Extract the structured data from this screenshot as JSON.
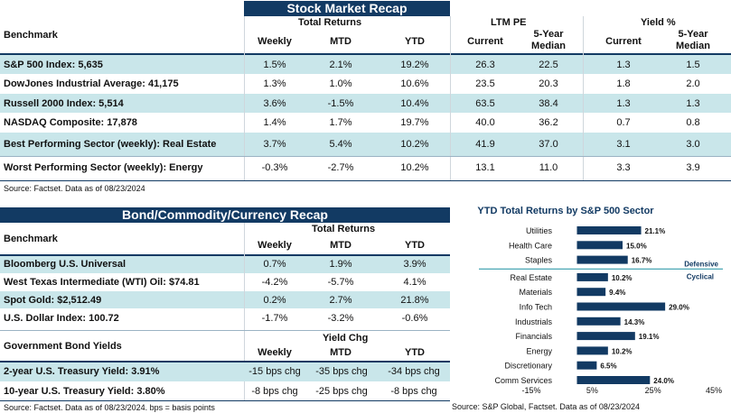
{
  "stock": {
    "title": "Stock Market Recap",
    "benchmark_label": "Benchmark",
    "group_total": "Total Returns",
    "group_pe": "LTM PE",
    "group_yield": "Yield %",
    "col_weekly": "Weekly",
    "col_mtd": "MTD",
    "col_ytd": "YTD",
    "col_current": "Current",
    "col_median_1": "5-Year",
    "col_median_2": "Median",
    "yield_current": "Current",
    "yield_median_1": "5-Year",
    "yield_median_2": "Median",
    "rows": [
      {
        "label": "S&P 500 Index: 5,635",
        "weekly": "1.5%",
        "mtd": "2.1%",
        "ytd": "19.2%",
        "pe_current": "26.3",
        "pe_median": "22.5",
        "y_current": "1.3",
        "y_median": "1.5"
      },
      {
        "label": "DowJones Industrial Average: 41,175",
        "weekly": "1.3%",
        "mtd": "1.0%",
        "ytd": "10.6%",
        "pe_current": "23.5",
        "pe_median": "20.3",
        "y_current": "1.8",
        "y_median": "2.0"
      },
      {
        "label": "Russell 2000 Index: 5,514",
        "weekly": "3.6%",
        "mtd": "-1.5%",
        "ytd": "10.4%",
        "pe_current": "63.5",
        "pe_median": "38.4",
        "y_current": "1.3",
        "y_median": "1.3"
      },
      {
        "label": "NASDAQ Composite: 17,878",
        "weekly": "1.4%",
        "mtd": "1.7%",
        "ytd": "19.7%",
        "pe_current": "40.0",
        "pe_median": "36.2",
        "y_current": "0.7",
        "y_median": "0.8"
      },
      {
        "label": "Best Performing Sector (weekly): Real Estate",
        "weekly": "3.7%",
        "mtd": "5.4%",
        "ytd": "10.2%",
        "pe_current": "41.9",
        "pe_median": "37.0",
        "y_current": "3.1",
        "y_median": "3.0"
      },
      {
        "label": "Worst Performing Sector (weekly): Energy",
        "weekly": "-0.3%",
        "mtd": "-2.7%",
        "ytd": "10.2%",
        "pe_current": "13.1",
        "pe_median": "11.0",
        "y_current": "3.3",
        "y_median": "3.9"
      }
    ],
    "source": "Source: Factset. Data as of 08/23/2024"
  },
  "bond": {
    "title": "Bond/Commodity/Currency Recap",
    "benchmark_label": "Benchmark",
    "group_total": "Total Returns",
    "col_weekly": "Weekly",
    "col_mtd": "MTD",
    "col_ytd": "YTD",
    "rows": [
      {
        "label": "Bloomberg U.S. Universal",
        "weekly": "0.7%",
        "mtd": "1.9%",
        "ytd": "3.9%"
      },
      {
        "label": "West Texas Intermediate (WTI) Oil: $74.81",
        "weekly": "-4.2%",
        "mtd": "-5.7%",
        "ytd": "4.1%"
      },
      {
        "label": "Spot Gold: $2,512.49",
        "weekly": "0.2%",
        "mtd": "2.7%",
        "ytd": "21.8%"
      },
      {
        "label": "U.S. Dollar Index: 100.72",
        "weekly": "-1.7%",
        "mtd": "-3.2%",
        "ytd": "-0.6%"
      }
    ],
    "gov_label": "Government Bond Yields",
    "gov_group": "Yield Chg",
    "gov_weekly": "Weekly",
    "gov_mtd": "MTD",
    "gov_ytd": "YTD",
    "gov_rows": [
      {
        "label": "2-year U.S. Treasury Yield: 3.91%",
        "weekly": "-15 bps chg",
        "mtd": "-35 bps chg",
        "ytd": "-34 bps chg"
      },
      {
        "label": "10-year U.S. Treasury Yield: 3.80%",
        "weekly": "-8 bps chg",
        "mtd": "-25 bps chg",
        "ytd": "-8 bps chg"
      }
    ],
    "source": "Source: Factset. Data as of 08/23/2024. bps = basis points"
  },
  "chart_data": {
    "type": "bar",
    "orientation": "horizontal",
    "title": "YTD Total Returns by S&P 500 Sector",
    "categories": [
      "Utilities",
      "Health Care",
      "Staples",
      "Real Estate",
      "Materials",
      "Info Tech",
      "Industrials",
      "Financials",
      "Energy",
      "Discretionary",
      "Comm Services"
    ],
    "values": [
      21.1,
      15.0,
      16.7,
      10.2,
      9.4,
      29.0,
      14.3,
      19.1,
      10.2,
      6.5,
      24.0
    ],
    "value_labels": [
      "21.1%",
      "15.0%",
      "16.7%",
      "10.2%",
      "9.4%",
      "29.0%",
      "14.3%",
      "19.1%",
      "10.2%",
      "6.5%",
      "24.0%"
    ],
    "xlim": [
      -15,
      45
    ],
    "xticks": [
      "-15%",
      "5%",
      "25%",
      "45%"
    ],
    "group_labels": [
      "Defensive",
      "Cyclical"
    ],
    "bar_color": "#123a63",
    "source": "Source: S&P Global, Factset. Data as of 08/23/2024"
  },
  "colors": {
    "header": "#123a63",
    "band": "#c9e6ea",
    "accent": "#1a8fa0"
  }
}
